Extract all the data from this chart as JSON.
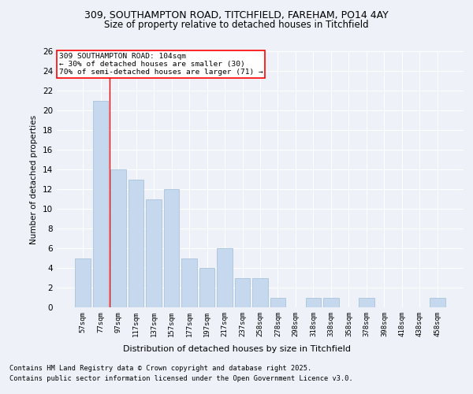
{
  "title1": "309, SOUTHAMPTON ROAD, TITCHFIELD, FAREHAM, PO14 4AY",
  "title2": "Size of property relative to detached houses in Titchfield",
  "xlabel": "Distribution of detached houses by size in Titchfield",
  "ylabel": "Number of detached properties",
  "categories": [
    "57sqm",
    "77sqm",
    "97sqm",
    "117sqm",
    "137sqm",
    "157sqm",
    "177sqm",
    "197sqm",
    "217sqm",
    "237sqm",
    "258sqm",
    "278sqm",
    "298sqm",
    "318sqm",
    "338sqm",
    "358sqm",
    "378sqm",
    "398sqm",
    "418sqm",
    "438sqm",
    "458sqm"
  ],
  "values": [
    5,
    21,
    14,
    13,
    11,
    12,
    5,
    4,
    6,
    3,
    3,
    1,
    0,
    1,
    1,
    0,
    1,
    0,
    0,
    0,
    1
  ],
  "bar_color": "#c5d8ed",
  "bar_edge_color": "#a8c4dc",
  "vline_color": "red",
  "vline_pos": 1.5,
  "annotation_text": "309 SOUTHAMPTON ROAD: 104sqm\n← 30% of detached houses are smaller (30)\n70% of semi-detached houses are larger (71) →",
  "annotation_box_color": "white",
  "annotation_box_edge": "red",
  "ylim": [
    0,
    26
  ],
  "yticks": [
    0,
    2,
    4,
    6,
    8,
    10,
    12,
    14,
    16,
    18,
    20,
    22,
    24,
    26
  ],
  "bg_color": "#eef2f8",
  "footer1": "Contains HM Land Registry data © Crown copyright and database right 2025.",
  "footer2": "Contains public sector information licensed under the Open Government Licence v3.0."
}
